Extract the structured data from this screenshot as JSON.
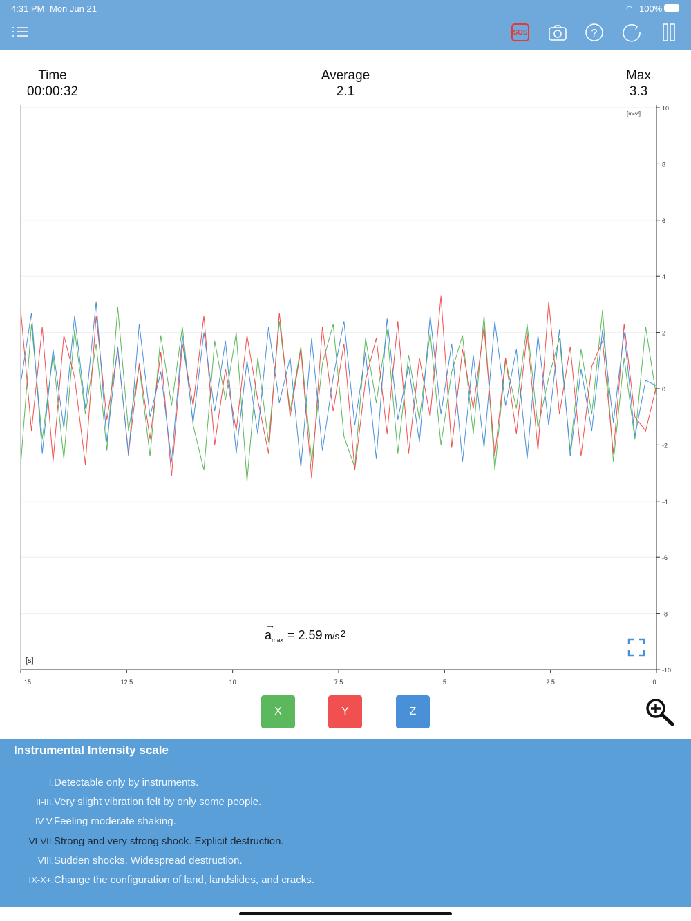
{
  "status": {
    "time": "4:31 PM",
    "date": "Mon Jun 21",
    "battery": "100%"
  },
  "toolbar": {
    "sos_label": "SOS"
  },
  "stats": {
    "time_label": "Time",
    "time_value": "00:00:32",
    "avg_label": "Average",
    "avg_value": "2.1",
    "max_label": "Max",
    "max_value": "3.3"
  },
  "chart_data": {
    "type": "line",
    "xlabel": "[s]",
    "ylabel": "[m/s²]",
    "xlim": [
      15,
      0
    ],
    "ylim": [
      -10,
      10
    ],
    "x_ticks": [
      "15",
      "12.5",
      "10",
      "7.5",
      "5",
      "2.5",
      "0"
    ],
    "y_ticks": [
      "10",
      "8",
      "6",
      "4",
      "2",
      "0",
      "-2",
      "-4",
      "-6",
      "-8",
      "-10"
    ],
    "annotation": {
      "symbol": "a",
      "sub": "max",
      "text": "= 2.59",
      "unit": "m/s",
      "exp": "2"
    },
    "series": [
      {
        "name": "X",
        "color": "#5cb85c",
        "values": [
          -2.7,
          2.3,
          -1.8,
          1.2,
          -2.5,
          2.1,
          -0.9,
          1.6,
          -2.2,
          2.9,
          -1.5,
          0.8,
          -2.4,
          1.9,
          -0.6,
          2.2,
          -1.3,
          -2.9,
          1.7,
          -0.4,
          2.0,
          -3.3,
          1.1,
          -1.9,
          2.4,
          -0.8,
          1.5,
          -2.6,
          0.9,
          2.3,
          -1.7,
          -2.8,
          1.8,
          -0.5,
          2.1,
          -2.3,
          1.2,
          -1.1,
          2.0,
          -2.0,
          0.6,
          1.9,
          -1.6,
          2.6,
          -2.9,
          1.0,
          -0.7,
          2.3,
          -1.4,
          0.4,
          1.8,
          -2.2,
          1.4,
          -0.9,
          2.8,
          -2.6,
          1.1,
          -1.8,
          2.2,
          -0.3
        ]
      },
      {
        "name": "Y",
        "color": "#f05050",
        "values": [
          2.8,
          -1.5,
          2.2,
          -2.6,
          1.9,
          0.4,
          -2.7,
          2.6,
          -1.1,
          1.4,
          -2.3,
          0.9,
          -1.8,
          1.3,
          -3.1,
          1.6,
          -0.6,
          2.6,
          -2.0,
          0.7,
          -1.5,
          1.9,
          -0.4,
          -2.3,
          2.7,
          -1.0,
          1.4,
          -3.2,
          2.2,
          -0.8,
          1.6,
          -2.9,
          0.3,
          1.8,
          -1.6,
          2.4,
          -2.3,
          1.1,
          -1.0,
          3.3,
          -2.1,
          1.4,
          -0.7,
          2.2,
          -2.4,
          1.1,
          -1.6,
          2.0,
          -2.2,
          3.1,
          -0.9,
          1.5,
          -2.4,
          0.8,
          1.7,
          -2.3,
          2.3,
          -1.0,
          -1.5,
          0.1
        ]
      },
      {
        "name": "Z",
        "color": "#4a90d9",
        "values": [
          0.2,
          2.7,
          -2.3,
          1.4,
          -1.4,
          2.6,
          -0.7,
          3.1,
          -1.9,
          1.5,
          -2.4,
          2.3,
          -1.0,
          0.6,
          -2.6,
          1.9,
          -1.2,
          2.0,
          -0.8,
          1.7,
          -2.3,
          1.0,
          -1.6,
          2.2,
          -0.5,
          1.1,
          -2.8,
          1.8,
          -2.2,
          0.4,
          2.4,
          -1.3,
          1.3,
          -2.5,
          2.5,
          -1.1,
          0.8,
          -1.9,
          2.6,
          -0.9,
          1.6,
          -2.6,
          1.2,
          -2.1,
          2.4,
          -0.6,
          1.4,
          -2.5,
          1.9,
          -1.3,
          2.1,
          -2.4,
          0.7,
          -1.5,
          2.1,
          -1.2,
          2.0,
          -1.7,
          0.3,
          0.1
        ]
      }
    ]
  },
  "buttons": {
    "x": "X",
    "y": "Y",
    "z": "Z"
  },
  "scale": {
    "title": "Instrumental Intensity scale",
    "rows": [
      {
        "num": "I.",
        "text": "Detectable only by instruments."
      },
      {
        "num": "II-III.",
        "text": "Very slight vibration felt by only some people."
      },
      {
        "num": "IV-V.",
        "text": "Feeling moderate shaking."
      },
      {
        "num": "VI-VII.",
        "text": "Strong and very strong shock. Explicit destruction."
      },
      {
        "num": "VIII.",
        "text": "Sudden shocks. Widespread destruction."
      },
      {
        "num": "IX-X+.",
        "text": "Change the configuration of land, landslides, and cracks."
      }
    ]
  }
}
